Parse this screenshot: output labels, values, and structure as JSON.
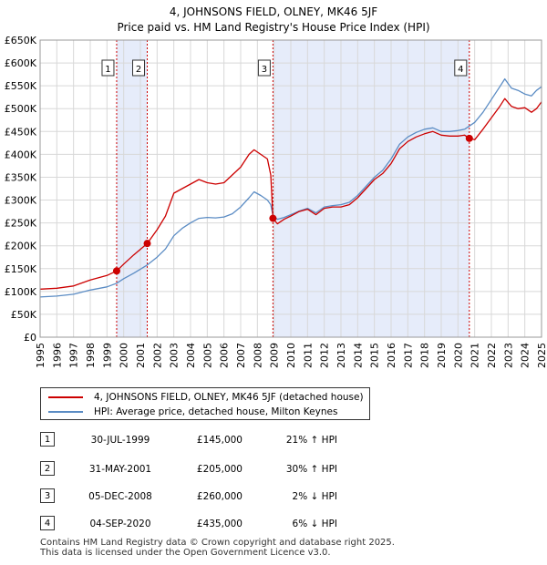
{
  "colors": {
    "property": "#cc0000",
    "hpi": "#5b8cc4",
    "shade": "#e6ecfa",
    "grid": "#d8d8d8"
  },
  "chart_data": {
    "type": "line",
    "title": "4, JOHNSONS FIELD, OLNEY, MK46 5JF",
    "subtitle": "Price paid vs. HM Land Registry's House Price Index (HPI)",
    "xlabel": "",
    "ylabel": "",
    "xlim": [
      1995,
      2025
    ],
    "ylim": [
      0,
      650000
    ],
    "yticks": [
      0,
      50000,
      100000,
      150000,
      200000,
      250000,
      300000,
      350000,
      400000,
      450000,
      500000,
      550000,
      600000,
      650000
    ],
    "ytick_labels": [
      "£0",
      "£50K",
      "£100K",
      "£150K",
      "£200K",
      "£250K",
      "£300K",
      "£350K",
      "£400K",
      "£450K",
      "£500K",
      "£550K",
      "£600K",
      "£650K"
    ],
    "xticks": [
      "1995",
      "1996",
      "1997",
      "1998",
      "1999",
      "2000",
      "2001",
      "2002",
      "2003",
      "2004",
      "2005",
      "2006",
      "2007",
      "2008",
      "2009",
      "2010",
      "2011",
      "2012",
      "2013",
      "2014",
      "2015",
      "2016",
      "2017",
      "2018",
      "2019",
      "2020",
      "2021",
      "2022",
      "2023",
      "2024",
      "2025"
    ],
    "shaded_ranges": [
      [
        1999.58,
        2001.41
      ],
      [
        2008.93,
        2020.68
      ]
    ],
    "series": [
      {
        "name": "4, JOHNSONS FIELD, OLNEY, MK46 5JF (detached house)",
        "color": "#cc0000",
        "points": [
          [
            1995.0,
            105000
          ],
          [
            1996.0,
            107000
          ],
          [
            1997.0,
            112000
          ],
          [
            1998.0,
            125000
          ],
          [
            1999.0,
            135000
          ],
          [
            1999.58,
            145000
          ],
          [
            2000.0,
            160000
          ],
          [
            2000.6,
            180000
          ],
          [
            2001.41,
            205000
          ],
          [
            2002.0,
            235000
          ],
          [
            2002.5,
            265000
          ],
          [
            2003.0,
            315000
          ],
          [
            2003.5,
            325000
          ],
          [
            2004.0,
            335000
          ],
          [
            2004.5,
            345000
          ],
          [
            2005.0,
            338000
          ],
          [
            2005.5,
            335000
          ],
          [
            2006.0,
            338000
          ],
          [
            2006.5,
            355000
          ],
          [
            2007.0,
            372000
          ],
          [
            2007.5,
            400000
          ],
          [
            2007.8,
            410000
          ],
          [
            2008.2,
            400000
          ],
          [
            2008.6,
            390000
          ],
          [
            2008.8,
            355000
          ],
          [
            2008.93,
            260000
          ],
          [
            2009.2,
            248000
          ],
          [
            2009.6,
            258000
          ],
          [
            2010.0,
            265000
          ],
          [
            2010.5,
            275000
          ],
          [
            2011.0,
            280000
          ],
          [
            2011.5,
            268000
          ],
          [
            2012.0,
            282000
          ],
          [
            2012.5,
            285000
          ],
          [
            2013.0,
            285000
          ],
          [
            2013.5,
            290000
          ],
          [
            2014.0,
            305000
          ],
          [
            2014.5,
            325000
          ],
          [
            2015.0,
            345000
          ],
          [
            2015.5,
            358000
          ],
          [
            2016.0,
            380000
          ],
          [
            2016.5,
            412000
          ],
          [
            2017.0,
            428000
          ],
          [
            2017.5,
            438000
          ],
          [
            2018.0,
            445000
          ],
          [
            2018.5,
            450000
          ],
          [
            2019.0,
            442000
          ],
          [
            2019.5,
            440000
          ],
          [
            2020.0,
            440000
          ],
          [
            2020.4,
            442000
          ],
          [
            2020.68,
            435000
          ],
          [
            2021.0,
            432000
          ],
          [
            2021.5,
            455000
          ],
          [
            2022.0,
            480000
          ],
          [
            2022.5,
            505000
          ],
          [
            2022.8,
            522000
          ],
          [
            2023.2,
            505000
          ],
          [
            2023.6,
            500000
          ],
          [
            2024.0,
            502000
          ],
          [
            2024.4,
            492000
          ],
          [
            2024.7,
            500000
          ],
          [
            2025.0,
            515000
          ]
        ]
      },
      {
        "name": "HPI: Average price, detached house, Milton Keynes",
        "color": "#5b8cc4",
        "points": [
          [
            1995.0,
            88000
          ],
          [
            1996.0,
            90000
          ],
          [
            1997.0,
            94000
          ],
          [
            1998.0,
            103000
          ],
          [
            1999.0,
            110000
          ],
          [
            1999.58,
            118000
          ],
          [
            2000.0,
            128000
          ],
          [
            2000.6,
            140000
          ],
          [
            2001.41,
            158000
          ],
          [
            2002.0,
            175000
          ],
          [
            2002.5,
            193000
          ],
          [
            2003.0,
            222000
          ],
          [
            2003.5,
            238000
          ],
          [
            2004.0,
            250000
          ],
          [
            2004.5,
            260000
          ],
          [
            2005.0,
            262000
          ],
          [
            2005.5,
            261000
          ],
          [
            2006.0,
            263000
          ],
          [
            2006.5,
            270000
          ],
          [
            2007.0,
            285000
          ],
          [
            2007.5,
            305000
          ],
          [
            2007.8,
            318000
          ],
          [
            2008.2,
            310000
          ],
          [
            2008.6,
            300000
          ],
          [
            2008.8,
            290000
          ],
          [
            2008.93,
            266000
          ],
          [
            2009.2,
            258000
          ],
          [
            2009.6,
            262000
          ],
          [
            2010.0,
            268000
          ],
          [
            2010.5,
            276000
          ],
          [
            2011.0,
            282000
          ],
          [
            2011.5,
            272000
          ],
          [
            2012.0,
            285000
          ],
          [
            2012.5,
            288000
          ],
          [
            2013.0,
            290000
          ],
          [
            2013.5,
            295000
          ],
          [
            2014.0,
            310000
          ],
          [
            2014.5,
            330000
          ],
          [
            2015.0,
            350000
          ],
          [
            2015.5,
            365000
          ],
          [
            2016.0,
            390000
          ],
          [
            2016.5,
            422000
          ],
          [
            2017.0,
            438000
          ],
          [
            2017.5,
            448000
          ],
          [
            2018.0,
            455000
          ],
          [
            2018.5,
            458000
          ],
          [
            2019.0,
            450000
          ],
          [
            2019.5,
            450000
          ],
          [
            2020.0,
            452000
          ],
          [
            2020.4,
            455000
          ],
          [
            2020.68,
            462000
          ],
          [
            2021.0,
            470000
          ],
          [
            2021.5,
            492000
          ],
          [
            2022.0,
            520000
          ],
          [
            2022.5,
            548000
          ],
          [
            2022.8,
            565000
          ],
          [
            2023.2,
            545000
          ],
          [
            2023.6,
            540000
          ],
          [
            2024.0,
            532000
          ],
          [
            2024.4,
            528000
          ],
          [
            2024.7,
            540000
          ],
          [
            2025.0,
            548000
          ]
        ]
      }
    ],
    "sales": [
      {
        "label": "1",
        "x": 1999.58,
        "y": 145000
      },
      {
        "label": "2",
        "x": 2001.41,
        "y": 205000
      },
      {
        "label": "3",
        "x": 2008.93,
        "y": 260000
      },
      {
        "label": "4",
        "x": 2020.68,
        "y": 435000
      }
    ]
  },
  "legend": {
    "property_label": "4, JOHNSONS FIELD, OLNEY, MK46 5JF (detached house)",
    "hpi_label": "HPI: Average price, detached house, Milton Keynes"
  },
  "sales_table": [
    {
      "num": "1",
      "date": "30-JUL-1999",
      "price": "£145,000",
      "hpi": "21% ↑ HPI"
    },
    {
      "num": "2",
      "date": "31-MAY-2001",
      "price": "£205,000",
      "hpi": "30% ↑ HPI"
    },
    {
      "num": "3",
      "date": "05-DEC-2008",
      "price": "£260,000",
      "hpi": "2% ↓ HPI"
    },
    {
      "num": "4",
      "date": "04-SEP-2020",
      "price": "£435,000",
      "hpi": "6% ↓ HPI"
    }
  ],
  "footer": {
    "line1": "Contains HM Land Registry data © Crown copyright and database right 2025.",
    "line2": "This data is licensed under the Open Government Licence v3.0."
  }
}
